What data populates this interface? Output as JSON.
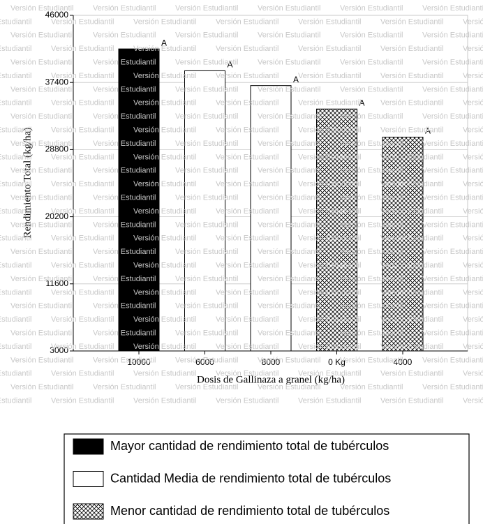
{
  "chart_data": {
    "type": "bar",
    "categories": [
      "10000",
      "6000",
      "8000",
      "0 Kg",
      "4000"
    ],
    "values": [
      41700,
      38900,
      37000,
      34000,
      30400
    ],
    "fills": [
      "black",
      "white",
      "white",
      "hatch",
      "hatch"
    ],
    "value_letters": [
      "A",
      "A",
      "A",
      "A",
      "A"
    ],
    "ylim": [
      3000,
      46000
    ],
    "yticks": [
      3000,
      11600,
      20200,
      28800,
      37400,
      46000
    ],
    "grid": true,
    "y_label": "Rendimiento Total (kg/ha)",
    "x_label": "Dosis de Gallinaza a granel (kg/ha)",
    "watermark": "Versión Estudiantil",
    "legend": [
      {
        "label": "Mayor cantidad de rendimiento total de tubérculos",
        "fill": "black"
      },
      {
        "label": "Cantidad Media de rendimiento total de tubérculos",
        "fill": "white"
      },
      {
        "label": "Menor cantidad de rendimiento total de tubérculos",
        "fill": "hatch"
      }
    ]
  }
}
